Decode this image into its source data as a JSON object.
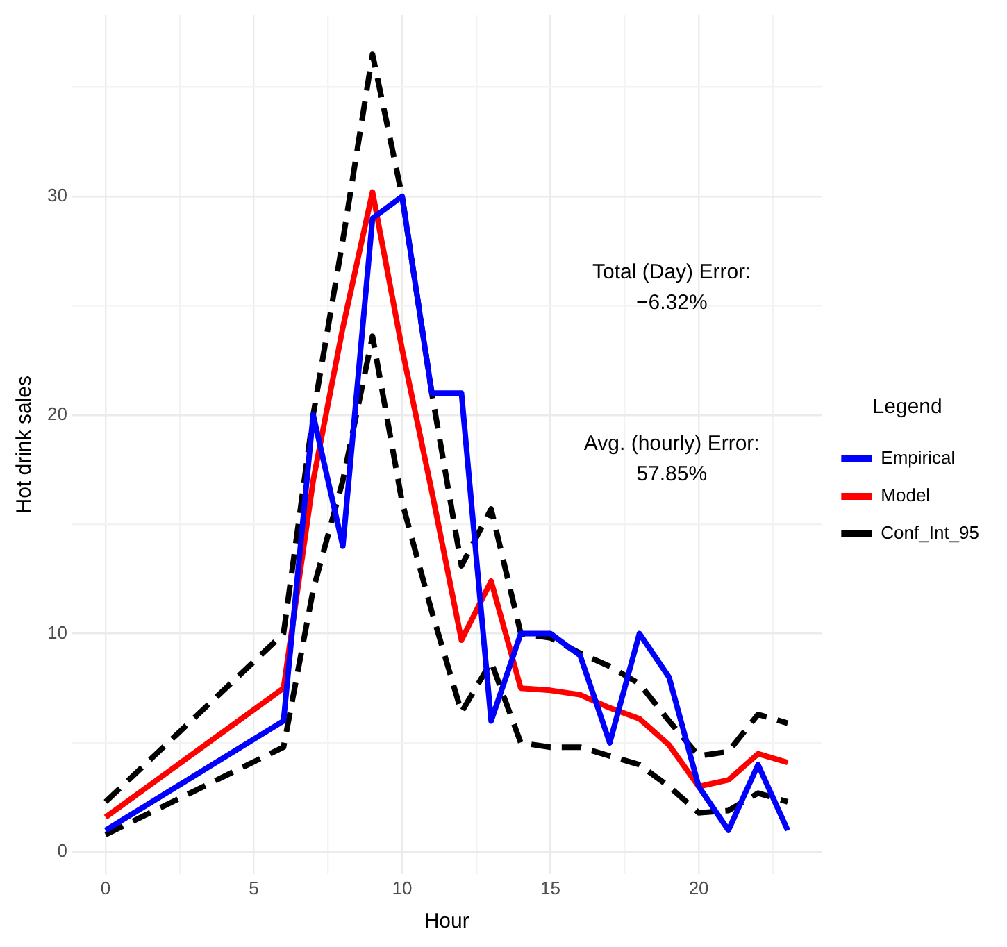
{
  "chart_data": {
    "type": "line",
    "xlabel": "Hour",
    "ylabel": "Hot drink sales",
    "legend_title": "Legend",
    "legend": "right",
    "grid": true,
    "line_style": "solid",
    "marker": "none",
    "x": [
      0,
      6,
      7,
      8,
      9,
      10,
      11,
      12,
      13,
      14,
      15,
      16,
      17,
      18,
      19,
      20,
      21,
      22,
      23
    ],
    "xlim": [
      -1.15,
      24.15
    ],
    "xticks": [
      0,
      {
        "value": 2.5,
        "label": null
      },
      5,
      {
        "value": 7.5,
        "label": null
      },
      10,
      {
        "value": 12.5,
        "label": null
      },
      15,
      {
        "value": 17.5,
        "label": null
      },
      20,
      {
        "value": 22.5,
        "label": null
      }
    ],
    "ylim": [
      -1,
      38.3
    ],
    "yticks": [
      0,
      {
        "value": 5,
        "label": null
      },
      10,
      {
        "value": 15,
        "label": null
      },
      20,
      {
        "value": 25,
        "label": null
      },
      30,
      {
        "value": 35,
        "label": null
      }
    ],
    "series": [
      {
        "name": "Empirical",
        "color": "#0000ff",
        "values": [
          1,
          6,
          20,
          14,
          29,
          30,
          21,
          21,
          6,
          10,
          10,
          9,
          5,
          10,
          8,
          3,
          1,
          4,
          1
        ]
      },
      {
        "name": "Model",
        "color": "#ff0000",
        "values": [
          1.6,
          7.5,
          17,
          24,
          30.2,
          23,
          16.5,
          9.7,
          12.4,
          7.5,
          7.4,
          7.2,
          6.6,
          6.1,
          4.9,
          3,
          3.3,
          4.5,
          4.1
        ]
      },
      {
        "name": "Conf_Int_95",
        "color": "#000000",
        "line_style": "dashed",
        "values": [
          2.3,
          10,
          20,
          28,
          36.5,
          30,
          21,
          13.1,
          15.7,
          10,
          9.8,
          9.1,
          8.5,
          7.7,
          6,
          4.4,
          4.6,
          6.3,
          5.9
        ]
      },
      {
        "color": "#000000",
        "line_style": "dashed",
        "values": [
          0.8,
          4.8,
          12,
          17,
          23.6,
          16,
          11,
          6.4,
          8.7,
          5,
          4.8,
          4.8,
          4.4,
          4,
          3,
          1.8,
          1.9,
          2.7,
          2.3
        ]
      }
    ],
    "annotations": [
      "Total (Day) Error:\n−6.32%",
      "Avg. (hourly) Error:\n57.85%"
    ]
  }
}
